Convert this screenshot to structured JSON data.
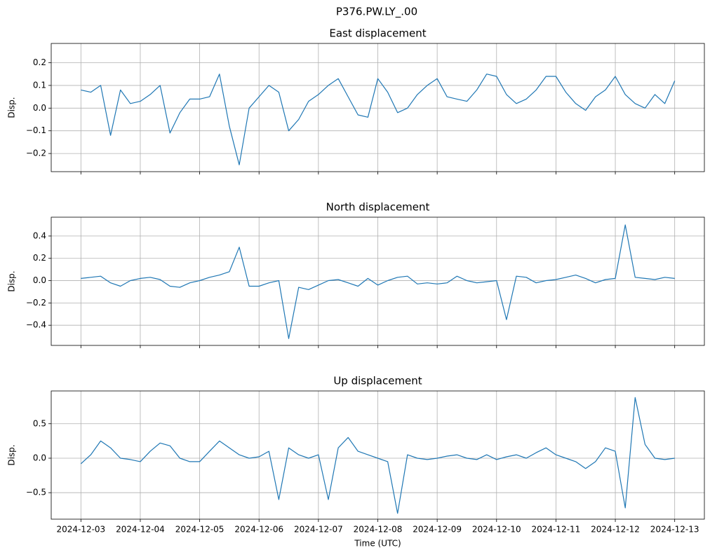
{
  "title": "P376.PW.LY_.00",
  "chart_data": [
    {
      "type": "line",
      "title": "East displacement",
      "ylabel": "Disp.",
      "grid": true,
      "xlim": [
        "2024-12-02 12:00",
        "2024-12-13 12:00"
      ],
      "xticks": [
        "2024-12-03",
        "2024-12-04",
        "2024-12-05",
        "2024-12-06",
        "2024-12-07",
        "2024-12-08",
        "2024-12-09",
        "2024-12-10",
        "2024-12-11",
        "2024-12-12",
        "2024-12-13"
      ],
      "ylim": [
        -0.28,
        0.285
      ],
      "yticks": [
        {
          "value": -0.2,
          "label": "−0.2"
        },
        {
          "value": -0.1,
          "label": "−0.1"
        },
        {
          "value": 0,
          "label": "0.0"
        },
        0.1,
        0.2
      ],
      "x": [
        "2024-12-03 00:00",
        "2024-12-03 04:00",
        "2024-12-03 08:00",
        "2024-12-03 12:00",
        "2024-12-03 16:00",
        "2024-12-03 20:00",
        "2024-12-04 00:00",
        "2024-12-04 04:00",
        "2024-12-04 08:00",
        "2024-12-04 12:00",
        "2024-12-04 16:00",
        "2024-12-04 20:00",
        "2024-12-05 00:00",
        "2024-12-05 04:00",
        "2024-12-05 08:00",
        "2024-12-05 12:00",
        "2024-12-05 16:00",
        "2024-12-05 20:00",
        "2024-12-06 00:00",
        "2024-12-06 04:00",
        "2024-12-06 08:00",
        "2024-12-06 12:00",
        "2024-12-06 16:00",
        "2024-12-06 20:00",
        "2024-12-07 00:00",
        "2024-12-07 04:00",
        "2024-12-07 08:00",
        "2024-12-07 12:00",
        "2024-12-07 16:00",
        "2024-12-07 20:00",
        "2024-12-08 00:00",
        "2024-12-08 04:00",
        "2024-12-08 08:00",
        "2024-12-08 12:00",
        "2024-12-08 16:00",
        "2024-12-08 20:00",
        "2024-12-09 00:00",
        "2024-12-09 04:00",
        "2024-12-09 08:00",
        "2024-12-09 12:00",
        "2024-12-09 16:00",
        "2024-12-09 20:00",
        "2024-12-10 00:00",
        "2024-12-10 04:00",
        "2024-12-10 08:00",
        "2024-12-10 12:00",
        "2024-12-10 16:00",
        "2024-12-10 20:00",
        "2024-12-11 00:00",
        "2024-12-11 04:00",
        "2024-12-11 08:00",
        "2024-12-11 12:00",
        "2024-12-11 16:00",
        "2024-12-11 20:00",
        "2024-12-12 00:00",
        "2024-12-12 04:00",
        "2024-12-12 08:00",
        "2024-12-12 12:00",
        "2024-12-12 16:00",
        "2024-12-12 20:00",
        "2024-12-13 00:00"
      ],
      "series": [
        {
          "color": "#1f77b4",
          "values": [
            0.08,
            0.07,
            0.1,
            -0.12,
            0.08,
            0.02,
            0.03,
            0.06,
            0.1,
            -0.11,
            -0.02,
            0.04,
            0.04,
            0.05,
            0.15,
            -0.08,
            -0.25,
            0.0,
            0.05,
            0.1,
            0.07,
            -0.1,
            -0.05,
            0.03,
            0.06,
            0.1,
            0.13,
            0.05,
            -0.03,
            -0.04,
            0.13,
            0.07,
            -0.02,
            0.0,
            0.06,
            0.1,
            0.13,
            0.05,
            0.04,
            0.03,
            0.08,
            0.15,
            0.14,
            0.06,
            0.02,
            0.04,
            0.08,
            0.14,
            0.14,
            0.07,
            0.02,
            -0.01,
            0.05,
            0.08,
            0.14,
            0.06,
            0.02,
            0.0,
            0.06,
            0.02,
            0.12
          ]
        }
      ]
    },
    {
      "type": "line",
      "title": "North displacement",
      "ylabel": "Disp.",
      "grid": true,
      "xlim": [
        "2024-12-02 12:00",
        "2024-12-13 12:00"
      ],
      "xticks": [
        "2024-12-03",
        "2024-12-04",
        "2024-12-05",
        "2024-12-06",
        "2024-12-07",
        "2024-12-08",
        "2024-12-09",
        "2024-12-10",
        "2024-12-11",
        "2024-12-12",
        "2024-12-13"
      ],
      "ylim": [
        -0.581,
        0.569
      ],
      "yticks": [
        {
          "value": -0.4,
          "label": "−0.4"
        },
        {
          "value": -0.2,
          "label": "−0.2"
        },
        {
          "value": 0,
          "label": "0.0"
        },
        0.2,
        0.4
      ],
      "x": [
        "2024-12-03 00:00",
        "2024-12-03 04:00",
        "2024-12-03 08:00",
        "2024-12-03 12:00",
        "2024-12-03 16:00",
        "2024-12-03 20:00",
        "2024-12-04 00:00",
        "2024-12-04 04:00",
        "2024-12-04 08:00",
        "2024-12-04 12:00",
        "2024-12-04 16:00",
        "2024-12-04 20:00",
        "2024-12-05 00:00",
        "2024-12-05 04:00",
        "2024-12-05 08:00",
        "2024-12-05 12:00",
        "2024-12-05 16:00",
        "2024-12-05 20:00",
        "2024-12-06 00:00",
        "2024-12-06 04:00",
        "2024-12-06 08:00",
        "2024-12-06 12:00",
        "2024-12-06 16:00",
        "2024-12-06 20:00",
        "2024-12-07 00:00",
        "2024-12-07 04:00",
        "2024-12-07 08:00",
        "2024-12-07 12:00",
        "2024-12-07 16:00",
        "2024-12-07 20:00",
        "2024-12-08 00:00",
        "2024-12-08 04:00",
        "2024-12-08 08:00",
        "2024-12-08 12:00",
        "2024-12-08 16:00",
        "2024-12-08 20:00",
        "2024-12-09 00:00",
        "2024-12-09 04:00",
        "2024-12-09 08:00",
        "2024-12-09 12:00",
        "2024-12-09 16:00",
        "2024-12-09 20:00",
        "2024-12-10 00:00",
        "2024-12-10 04:00",
        "2024-12-10 08:00",
        "2024-12-10 12:00",
        "2024-12-10 16:00",
        "2024-12-10 20:00",
        "2024-12-11 00:00",
        "2024-12-11 04:00",
        "2024-12-11 08:00",
        "2024-12-11 12:00",
        "2024-12-11 16:00",
        "2024-12-11 20:00",
        "2024-12-12 00:00",
        "2024-12-12 04:00",
        "2024-12-12 08:00",
        "2024-12-12 12:00",
        "2024-12-12 16:00",
        "2024-12-12 20:00",
        "2024-12-13 00:00"
      ],
      "series": [
        {
          "color": "#1f77b4",
          "values": [
            0.02,
            0.03,
            0.04,
            -0.02,
            -0.05,
            0.0,
            0.02,
            0.03,
            0.01,
            -0.05,
            -0.06,
            -0.02,
            0.0,
            0.03,
            0.05,
            0.08,
            0.3,
            -0.05,
            -0.05,
            -0.02,
            0.0,
            -0.52,
            -0.06,
            -0.08,
            -0.04,
            0.0,
            0.01,
            -0.02,
            -0.05,
            0.02,
            -0.04,
            0.0,
            0.03,
            0.04,
            -0.03,
            -0.02,
            -0.03,
            -0.02,
            0.04,
            0.0,
            -0.02,
            -0.01,
            0.0,
            -0.35,
            0.04,
            0.03,
            -0.02,
            0.0,
            0.01,
            0.03,
            0.05,
            0.02,
            -0.02,
            0.01,
            0.02,
            0.5,
            0.03,
            0.02,
            0.01,
            0.03,
            0.02
          ]
        }
      ]
    },
    {
      "type": "line",
      "title": "Up displacement",
      "ylabel": "Disp.",
      "xlabel": "Time (UTC)",
      "grid": true,
      "xlim": [
        "2024-12-02 12:00",
        "2024-12-13 12:00"
      ],
      "xticks": [
        "2024-12-03",
        "2024-12-04",
        "2024-12-05",
        "2024-12-06",
        "2024-12-07",
        "2024-12-08",
        "2024-12-09",
        "2024-12-10",
        "2024-12-11",
        "2024-12-12",
        "2024-12-13"
      ],
      "ylim": [
        -0.884,
        0.975
      ],
      "yticks": [
        {
          "value": -0.5,
          "label": "−0.5"
        },
        {
          "value": 0,
          "label": "0.0"
        },
        0.5
      ],
      "x": [
        "2024-12-03 00:00",
        "2024-12-03 04:00",
        "2024-12-03 08:00",
        "2024-12-03 12:00",
        "2024-12-03 16:00",
        "2024-12-03 20:00",
        "2024-12-04 00:00",
        "2024-12-04 04:00",
        "2024-12-04 08:00",
        "2024-12-04 12:00",
        "2024-12-04 16:00",
        "2024-12-04 20:00",
        "2024-12-05 00:00",
        "2024-12-05 04:00",
        "2024-12-05 08:00",
        "2024-12-05 12:00",
        "2024-12-05 16:00",
        "2024-12-05 20:00",
        "2024-12-06 00:00",
        "2024-12-06 04:00",
        "2024-12-06 08:00",
        "2024-12-06 12:00",
        "2024-12-06 16:00",
        "2024-12-06 20:00",
        "2024-12-07 00:00",
        "2024-12-07 04:00",
        "2024-12-07 08:00",
        "2024-12-07 12:00",
        "2024-12-07 16:00",
        "2024-12-07 20:00",
        "2024-12-08 00:00",
        "2024-12-08 04:00",
        "2024-12-08 08:00",
        "2024-12-08 12:00",
        "2024-12-08 16:00",
        "2024-12-08 20:00",
        "2024-12-09 00:00",
        "2024-12-09 04:00",
        "2024-12-09 08:00",
        "2024-12-09 12:00",
        "2024-12-09 16:00",
        "2024-12-09 20:00",
        "2024-12-10 00:00",
        "2024-12-10 04:00",
        "2024-12-10 08:00",
        "2024-12-10 12:00",
        "2024-12-10 16:00",
        "2024-12-10 20:00",
        "2024-12-11 00:00",
        "2024-12-11 04:00",
        "2024-12-11 08:00",
        "2024-12-11 12:00",
        "2024-12-11 16:00",
        "2024-12-11 20:00",
        "2024-12-12 00:00",
        "2024-12-12 04:00",
        "2024-12-12 08:00",
        "2024-12-12 12:00",
        "2024-12-12 16:00",
        "2024-12-12 20:00",
        "2024-12-13 00:00"
      ],
      "series": [
        {
          "color": "#1f77b4",
          "values": [
            -0.08,
            0.05,
            0.25,
            0.15,
            0.0,
            -0.02,
            -0.05,
            0.1,
            0.22,
            0.18,
            0.0,
            -0.05,
            -0.05,
            0.1,
            0.25,
            0.15,
            0.05,
            0.0,
            0.02,
            0.1,
            -0.6,
            0.15,
            0.05,
            0.0,
            0.05,
            -0.6,
            0.15,
            0.3,
            0.1,
            0.05,
            0.0,
            -0.05,
            -0.8,
            0.05,
            0.0,
            -0.02,
            0.0,
            0.03,
            0.05,
            0.0,
            -0.02,
            0.05,
            -0.02,
            0.02,
            0.05,
            0.0,
            0.08,
            0.15,
            0.05,
            0.0,
            -0.05,
            -0.15,
            -0.05,
            0.15,
            0.1,
            -0.72,
            0.88,
            0.2,
            0.0,
            -0.02,
            0.0
          ]
        }
      ]
    }
  ]
}
